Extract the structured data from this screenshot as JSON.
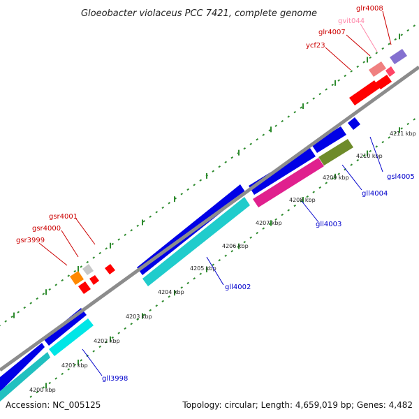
{
  "header": {
    "title": "Gloeobacter violaceus PCC 7421, complete genome"
  },
  "footer": {
    "accession": "Accession: NC_005125",
    "summary": "Topology: circular; Length: 4,659,019 bp; Genes: 4,482"
  },
  "colors": {
    "backbone": "#8c8c8c",
    "tick": "#2e8b2e",
    "forward_label": "#cc0000",
    "reverse_label": "#0000cc",
    "pink_label": "#ff88aa"
  },
  "ticks": [
    "4200 kbp",
    "4201 kbp",
    "4202 kbp",
    "4203 kbp",
    "4204 kbp",
    "4205 kbp",
    "4206 kbp",
    "4207 kbp",
    "4208 kbp",
    "4209 kbp",
    "4210 kbp",
    "4211 kbp"
  ],
  "forward_labels": [
    "gsr3999",
    "gsr4000",
    "gsr4001",
    "ycf23",
    "glr4007",
    "gvit044",
    "glr4008"
  ],
  "reverse_labels": [
    "gll3998",
    "gll4002",
    "gll4003",
    "gll4004",
    "gsl4005"
  ]
}
